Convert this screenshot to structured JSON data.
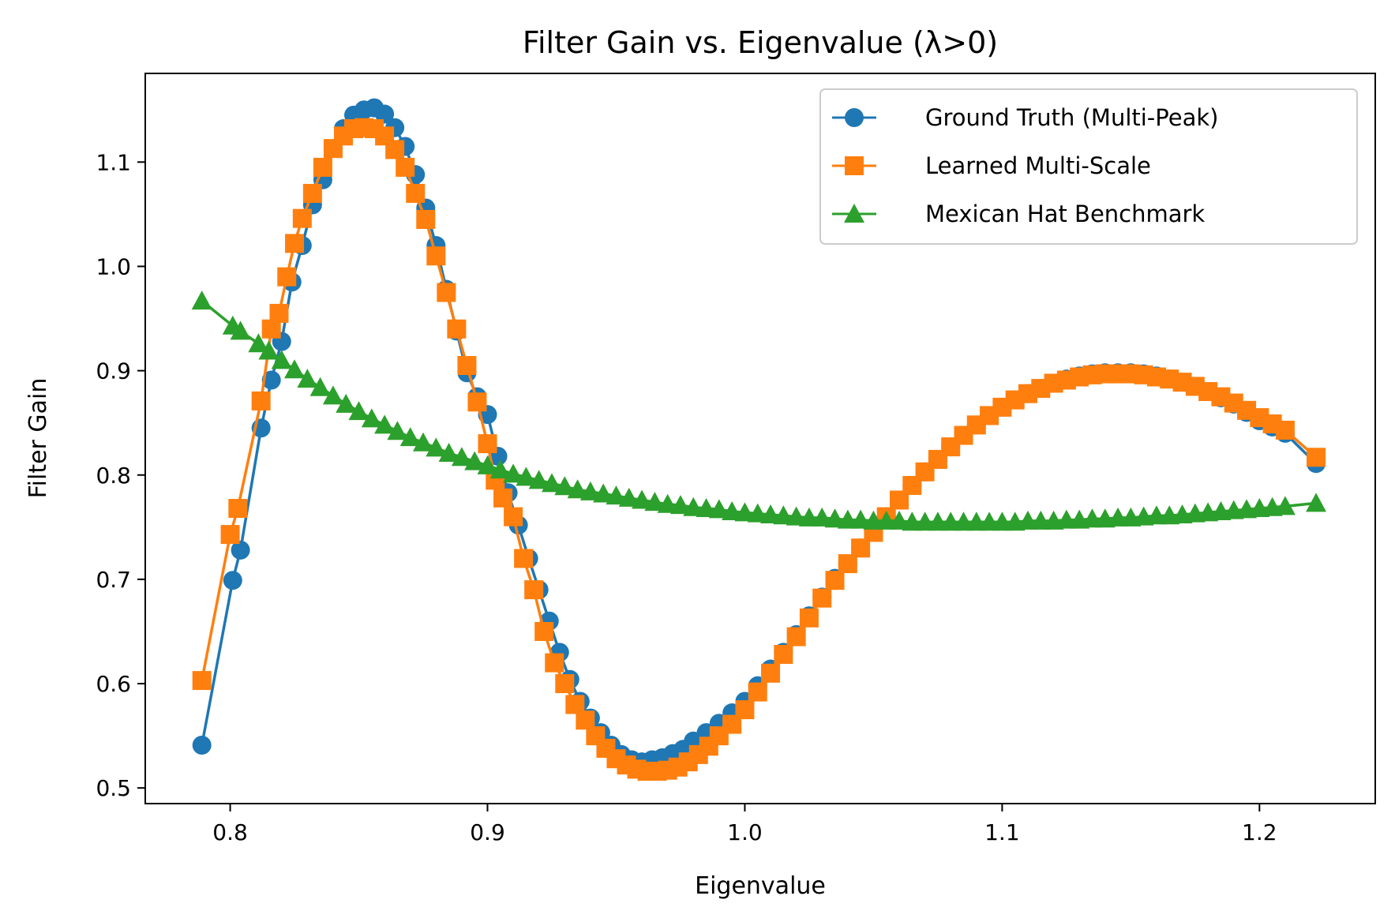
{
  "chart_data": {
    "type": "line",
    "title": "Filter Gain vs. Eigenvalue (λ>0)",
    "xlabel": "Eigenvalue",
    "ylabel": "Filter Gain",
    "xlim": [
      0.767,
      1.245
    ],
    "ylim": [
      0.485,
      1.185
    ],
    "xticks": [
      0.8,
      0.9,
      1.0,
      1.1,
      1.2
    ],
    "xtick_labels": [
      "0.8",
      "0.9",
      "1.0",
      "1.1",
      "1.2"
    ],
    "yticks": [
      0.5,
      0.6,
      0.7,
      0.8,
      0.9,
      1.0,
      1.1
    ],
    "ytick_labels": [
      "0.5",
      "0.6",
      "0.7",
      "0.8",
      "0.9",
      "1.0",
      "1.1"
    ],
    "grid": false,
    "legend_position": "top-right",
    "series": [
      {
        "name": "Ground Truth (Multi-Peak)",
        "color": "#1f77b4",
        "marker": "circle",
        "x": [
          0.789,
          0.801,
          0.804,
          0.812,
          0.816,
          0.82,
          0.824,
          0.828,
          0.832,
          0.836,
          0.84,
          0.844,
          0.848,
          0.852,
          0.856,
          0.86,
          0.864,
          0.868,
          0.872,
          0.876,
          0.88,
          0.884,
          0.888,
          0.892,
          0.896,
          0.9,
          0.904,
          0.908,
          0.912,
          0.916,
          0.92,
          0.924,
          0.928,
          0.932,
          0.936,
          0.94,
          0.944,
          0.948,
          0.952,
          0.956,
          0.96,
          0.964,
          0.968,
          0.972,
          0.976,
          0.98,
          0.985,
          0.99,
          0.995,
          1.0,
          1.005,
          1.01,
          1.015,
          1.02,
          1.025,
          1.03,
          1.035,
          1.04,
          1.045,
          1.05,
          1.055,
          1.06,
          1.065,
          1.07,
          1.075,
          1.08,
          1.085,
          1.09,
          1.095,
          1.1,
          1.105,
          1.11,
          1.115,
          1.12,
          1.125,
          1.13,
          1.135,
          1.14,
          1.145,
          1.15,
          1.155,
          1.16,
          1.165,
          1.17,
          1.175,
          1.18,
          1.185,
          1.19,
          1.195,
          1.2,
          1.205,
          1.21,
          1.222
        ],
        "y": [
          0.541,
          0.699,
          0.728,
          0.845,
          0.891,
          0.928,
          0.985,
          1.02,
          1.059,
          1.083,
          1.113,
          1.132,
          1.145,
          1.15,
          1.152,
          1.146,
          1.133,
          1.115,
          1.088,
          1.056,
          1.02,
          0.978,
          0.938,
          0.898,
          0.875,
          0.858,
          0.818,
          0.783,
          0.752,
          0.72,
          0.69,
          0.66,
          0.63,
          0.604,
          0.583,
          0.567,
          0.553,
          0.541,
          0.532,
          0.527,
          0.525,
          0.527,
          0.529,
          0.533,
          0.537,
          0.545,
          0.553,
          0.562,
          0.572,
          0.583,
          0.598,
          0.614,
          0.63,
          0.647,
          0.665,
          0.683,
          0.701,
          0.715,
          0.73,
          0.745,
          0.76,
          0.776,
          0.79,
          0.803,
          0.815,
          0.827,
          0.838,
          0.848,
          0.857,
          0.865,
          0.872,
          0.878,
          0.883,
          0.888,
          0.892,
          0.895,
          0.897,
          0.898,
          0.898,
          0.898,
          0.897,
          0.895,
          0.892,
          0.889,
          0.885,
          0.88,
          0.874,
          0.868,
          0.86,
          0.852,
          0.846,
          0.84,
          0.811
        ]
      },
      {
        "name": "Learned Multi-Scale",
        "color": "#ff7f0e",
        "marker": "square",
        "x": [
          0.789,
          0.8,
          0.803,
          0.812,
          0.816,
          0.819,
          0.822,
          0.825,
          0.828,
          0.832,
          0.836,
          0.84,
          0.844,
          0.848,
          0.852,
          0.856,
          0.86,
          0.864,
          0.868,
          0.872,
          0.876,
          0.88,
          0.884,
          0.888,
          0.892,
          0.896,
          0.9,
          0.903,
          0.906,
          0.91,
          0.914,
          0.918,
          0.922,
          0.926,
          0.93,
          0.934,
          0.938,
          0.942,
          0.946,
          0.95,
          0.954,
          0.958,
          0.962,
          0.966,
          0.97,
          0.974,
          0.978,
          0.982,
          0.986,
          0.99,
          0.995,
          1.0,
          1.005,
          1.01,
          1.015,
          1.02,
          1.025,
          1.03,
          1.035,
          1.04,
          1.045,
          1.05,
          1.055,
          1.06,
          1.065,
          1.07,
          1.075,
          1.08,
          1.085,
          1.09,
          1.095,
          1.1,
          1.105,
          1.11,
          1.115,
          1.12,
          1.125,
          1.13,
          1.135,
          1.14,
          1.145,
          1.15,
          1.155,
          1.16,
          1.165,
          1.17,
          1.175,
          1.18,
          1.185,
          1.19,
          1.195,
          1.2,
          1.205,
          1.21,
          1.222
        ],
        "y": [
          0.603,
          0.743,
          0.768,
          0.871,
          0.94,
          0.955,
          0.99,
          1.022,
          1.046,
          1.07,
          1.095,
          1.113,
          1.125,
          1.132,
          1.133,
          1.132,
          1.125,
          1.112,
          1.095,
          1.07,
          1.045,
          1.01,
          0.975,
          0.94,
          0.905,
          0.87,
          0.83,
          0.795,
          0.778,
          0.76,
          0.72,
          0.69,
          0.65,
          0.62,
          0.6,
          0.58,
          0.565,
          0.55,
          0.538,
          0.528,
          0.522,
          0.518,
          0.516,
          0.516,
          0.517,
          0.52,
          0.525,
          0.532,
          0.54,
          0.55,
          0.561,
          0.575,
          0.592,
          0.61,
          0.628,
          0.645,
          0.663,
          0.682,
          0.699,
          0.715,
          0.73,
          0.745,
          0.76,
          0.776,
          0.79,
          0.803,
          0.815,
          0.827,
          0.838,
          0.848,
          0.857,
          0.865,
          0.872,
          0.878,
          0.883,
          0.888,
          0.891,
          0.894,
          0.896,
          0.897,
          0.897,
          0.897,
          0.896,
          0.894,
          0.892,
          0.889,
          0.885,
          0.88,
          0.875,
          0.869,
          0.862,
          0.855,
          0.849,
          0.843,
          0.817
        ]
      },
      {
        "name": "Mexican Hat Benchmark",
        "color": "#2ca02c",
        "marker": "triangle",
        "x": [
          0.789,
          0.801,
          0.804,
          0.811,
          0.815,
          0.82,
          0.825,
          0.83,
          0.835,
          0.84,
          0.845,
          0.85,
          0.855,
          0.86,
          0.865,
          0.87,
          0.875,
          0.88,
          0.885,
          0.89,
          0.895,
          0.9,
          0.905,
          0.91,
          0.915,
          0.92,
          0.925,
          0.93,
          0.935,
          0.94,
          0.945,
          0.95,
          0.955,
          0.96,
          0.965,
          0.97,
          0.975,
          0.98,
          0.985,
          0.99,
          0.995,
          1.0,
          1.005,
          1.01,
          1.015,
          1.02,
          1.025,
          1.03,
          1.035,
          1.04,
          1.045,
          1.05,
          1.055,
          1.06,
          1.065,
          1.07,
          1.075,
          1.08,
          1.085,
          1.09,
          1.095,
          1.1,
          1.105,
          1.11,
          1.115,
          1.12,
          1.125,
          1.13,
          1.135,
          1.14,
          1.145,
          1.15,
          1.155,
          1.16,
          1.165,
          1.17,
          1.175,
          1.18,
          1.185,
          1.19,
          1.195,
          1.2,
          1.205,
          1.21,
          1.222
        ],
        "y": [
          0.967,
          0.943,
          0.938,
          0.926,
          0.919,
          0.91,
          0.901,
          0.892,
          0.884,
          0.876,
          0.868,
          0.861,
          0.854,
          0.848,
          0.842,
          0.836,
          0.831,
          0.826,
          0.821,
          0.817,
          0.813,
          0.809,
          0.805,
          0.801,
          0.798,
          0.795,
          0.792,
          0.789,
          0.786,
          0.784,
          0.782,
          0.78,
          0.778,
          0.776,
          0.774,
          0.772,
          0.771,
          0.769,
          0.768,
          0.767,
          0.765,
          0.764,
          0.763,
          0.762,
          0.761,
          0.76,
          0.759,
          0.759,
          0.758,
          0.757,
          0.757,
          0.756,
          0.756,
          0.756,
          0.755,
          0.755,
          0.755,
          0.755,
          0.755,
          0.755,
          0.755,
          0.755,
          0.755,
          0.756,
          0.756,
          0.756,
          0.757,
          0.757,
          0.758,
          0.758,
          0.759,
          0.759,
          0.76,
          0.761,
          0.761,
          0.762,
          0.763,
          0.764,
          0.765,
          0.766,
          0.767,
          0.768,
          0.769,
          0.77,
          0.773
        ]
      }
    ]
  }
}
